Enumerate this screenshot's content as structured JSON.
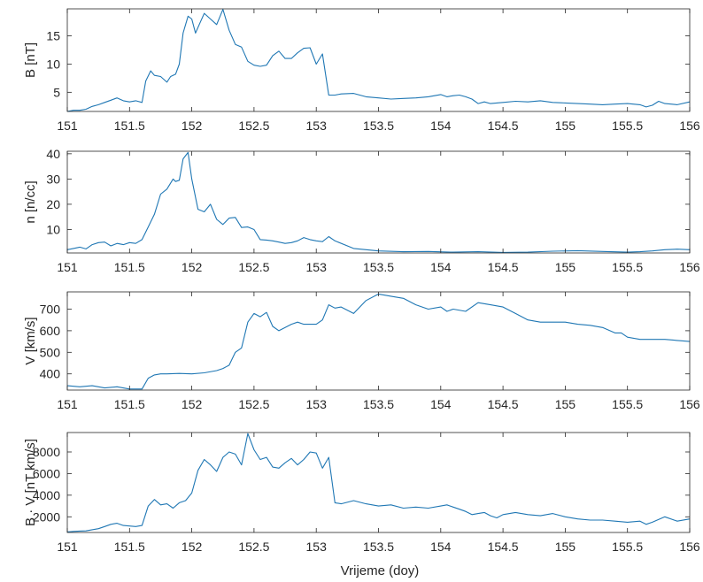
{
  "xlabel": "Vrijeme (doy)",
  "line_color": "#1f77b4",
  "chart_data": [
    {
      "type": "line",
      "ylabel": "B [nT]",
      "xlim": [
        151,
        156
      ],
      "ylim": [
        1.6,
        19.8
      ],
      "xticks": [
        "151",
        "151.5",
        "152",
        "152.5",
        "153",
        "153.5",
        "154",
        "154.5",
        "155",
        "155.5",
        "156"
      ],
      "yticks": [
        "5",
        "10",
        "15"
      ],
      "x": [
        151.0,
        151.05,
        151.1,
        151.15,
        151.2,
        151.25,
        151.3,
        151.35,
        151.4,
        151.45,
        151.5,
        151.55,
        151.6,
        151.63,
        151.67,
        151.7,
        151.75,
        151.8,
        151.83,
        151.87,
        151.9,
        151.93,
        151.97,
        152.0,
        152.03,
        152.07,
        152.1,
        152.15,
        152.2,
        152.25,
        152.3,
        152.35,
        152.4,
        152.45,
        152.5,
        152.55,
        152.6,
        152.65,
        152.7,
        152.75,
        152.8,
        152.85,
        152.9,
        152.95,
        153.0,
        153.05,
        153.1,
        153.15,
        153.2,
        153.3,
        153.4,
        153.5,
        153.6,
        153.7,
        153.8,
        153.9,
        154.0,
        154.05,
        154.1,
        154.15,
        154.2,
        154.25,
        154.3,
        154.35,
        154.4,
        154.5,
        154.6,
        154.7,
        154.8,
        154.9,
        155.0,
        155.1,
        155.2,
        155.3,
        155.4,
        155.5,
        155.6,
        155.65,
        155.7,
        155.75,
        155.8,
        155.85,
        155.9,
        156.0
      ],
      "y": [
        1.6,
        1.8,
        1.8,
        2.0,
        2.5,
        2.8,
        3.2,
        3.6,
        4.0,
        3.5,
        3.3,
        3.5,
        3.2,
        7.0,
        8.8,
        8.0,
        7.8,
        6.8,
        7.8,
        8.2,
        10.0,
        15.5,
        18.5,
        18.0,
        15.5,
        17.5,
        19.0,
        18.0,
        17.0,
        19.7,
        16.0,
        13.5,
        13.0,
        10.5,
        9.8,
        9.6,
        9.8,
        11.5,
        12.3,
        11.0,
        11.0,
        12.0,
        12.8,
        12.9,
        10.0,
        11.8,
        4.5,
        4.5,
        4.7,
        4.8,
        4.2,
        4.0,
        3.8,
        3.9,
        4.0,
        4.2,
        4.6,
        4.2,
        4.4,
        4.5,
        4.2,
        3.8,
        3.0,
        3.3,
        3.0,
        3.2,
        3.4,
        3.3,
        3.5,
        3.2,
        3.1,
        3.0,
        2.9,
        2.8,
        2.9,
        3.0,
        2.8,
        2.4,
        2.7,
        3.4,
        3.0,
        2.9,
        2.8,
        3.3
      ]
    },
    {
      "type": "line",
      "ylabel": "n [n/cc]",
      "xlim": [
        151,
        156
      ],
      "ylim": [
        0.7,
        41
      ],
      "xticks": [
        "151",
        "151.5",
        "152",
        "152.5",
        "153",
        "153.5",
        "154",
        "154.5",
        "155",
        "155.5",
        "156"
      ],
      "yticks": [
        "10",
        "20",
        "30",
        "40"
      ],
      "x": [
        151.0,
        151.05,
        151.1,
        151.15,
        151.2,
        151.25,
        151.3,
        151.35,
        151.4,
        151.45,
        151.5,
        151.55,
        151.6,
        151.65,
        151.7,
        151.75,
        151.8,
        151.85,
        151.87,
        151.9,
        151.93,
        151.97,
        152.0,
        152.05,
        152.1,
        152.15,
        152.2,
        152.25,
        152.3,
        152.35,
        152.4,
        152.45,
        152.5,
        152.55,
        152.6,
        152.65,
        152.7,
        152.75,
        152.8,
        152.85,
        152.9,
        152.95,
        153.0,
        153.05,
        153.1,
        153.15,
        153.3,
        153.5,
        153.7,
        153.9,
        154.1,
        154.3,
        154.5,
        154.7,
        154.9,
        155.1,
        155.3,
        155.5,
        155.6,
        155.7,
        155.8,
        155.9,
        156.0
      ],
      "y": [
        2.0,
        2.5,
        3.0,
        2.3,
        4.0,
        4.8,
        5.0,
        3.5,
        4.5,
        4.0,
        4.8,
        4.5,
        6.0,
        11.0,
        16.0,
        24.0,
        26.0,
        30.0,
        29.0,
        29.5,
        38.0,
        40.5,
        30.0,
        18.0,
        17.0,
        20.0,
        14.0,
        12.0,
        14.5,
        14.8,
        10.8,
        11.0,
        10.0,
        6.0,
        5.8,
        5.5,
        5.0,
        4.5,
        4.8,
        5.5,
        6.8,
        6.0,
        5.5,
        5.2,
        7.2,
        5.5,
        2.5,
        1.5,
        1.2,
        1.3,
        1.0,
        1.2,
        0.9,
        1.0,
        1.4,
        1.6,
        1.3,
        1.0,
        1.2,
        1.5,
        2.0,
        2.2,
        2.0
      ]
    },
    {
      "type": "line",
      "ylabel": "V [km/s]",
      "xlim": [
        151,
        156
      ],
      "ylim": [
        325,
        780
      ],
      "xticks": [
        "151",
        "151.5",
        "152",
        "152.5",
        "153",
        "153.5",
        "154",
        "154.5",
        "155",
        "155.5",
        "156"
      ],
      "yticks": [
        "400",
        "500",
        "600",
        "700"
      ],
      "x": [
        151.0,
        151.1,
        151.2,
        151.3,
        151.4,
        151.5,
        151.6,
        151.65,
        151.7,
        151.75,
        151.8,
        151.9,
        152.0,
        152.1,
        152.2,
        152.25,
        152.3,
        152.35,
        152.4,
        152.45,
        152.5,
        152.55,
        152.6,
        152.65,
        152.7,
        152.8,
        152.85,
        152.9,
        153.0,
        153.05,
        153.1,
        153.15,
        153.2,
        153.3,
        153.4,
        153.5,
        153.6,
        153.7,
        153.8,
        153.9,
        154.0,
        154.05,
        154.1,
        154.2,
        154.3,
        154.4,
        154.5,
        154.6,
        154.7,
        154.8,
        154.9,
        155.0,
        155.1,
        155.2,
        155.3,
        155.4,
        155.45,
        155.5,
        155.6,
        155.7,
        155.8,
        155.9,
        156.0
      ],
      "y": [
        345,
        340,
        345,
        335,
        340,
        330,
        330,
        380,
        395,
        400,
        400,
        402,
        400,
        405,
        415,
        425,
        440,
        500,
        520,
        640,
        680,
        665,
        685,
        620,
        600,
        630,
        640,
        630,
        630,
        650,
        720,
        705,
        710,
        680,
        740,
        770,
        760,
        750,
        720,
        700,
        710,
        690,
        700,
        690,
        730,
        720,
        710,
        680,
        650,
        640,
        640,
        640,
        630,
        625,
        615,
        590,
        590,
        570,
        560,
        560,
        560,
        555,
        550
      ]
    },
    {
      "type": "line",
      "ylabel": "B · V [nT km/s]",
      "xlim": [
        151,
        156
      ],
      "ylim": [
        550,
        9800
      ],
      "xticks": [
        "151",
        "151.5",
        "152",
        "152.5",
        "153",
        "153.5",
        "154",
        "154.5",
        "155",
        "155.5",
        "156"
      ],
      "yticks": [
        "2000",
        "4000",
        "6000",
        "8000"
      ],
      "x": [
        151.0,
        151.05,
        151.1,
        151.15,
        151.2,
        151.25,
        151.3,
        151.35,
        151.4,
        151.45,
        151.5,
        151.55,
        151.6,
        151.65,
        151.7,
        151.75,
        151.8,
        151.85,
        151.9,
        151.95,
        152.0,
        152.05,
        152.1,
        152.15,
        152.2,
        152.25,
        152.3,
        152.35,
        152.4,
        152.45,
        152.5,
        152.55,
        152.6,
        152.65,
        152.7,
        152.75,
        152.8,
        152.85,
        152.9,
        152.95,
        153.0,
        153.05,
        153.1,
        153.15,
        153.2,
        153.3,
        153.4,
        153.5,
        153.6,
        153.7,
        153.8,
        153.9,
        154.0,
        154.05,
        154.1,
        154.15,
        154.2,
        154.25,
        154.3,
        154.35,
        154.4,
        154.45,
        154.5,
        154.6,
        154.7,
        154.8,
        154.9,
        155.0,
        155.1,
        155.2,
        155.3,
        155.4,
        155.5,
        155.6,
        155.65,
        155.7,
        155.8,
        155.9,
        156.0
      ],
      "y": [
        600,
        650,
        680,
        700,
        800,
        900,
        1100,
        1300,
        1400,
        1200,
        1150,
        1100,
        1200,
        3000,
        3600,
        3100,
        3200,
        2800,
        3300,
        3500,
        4200,
        6300,
        7300,
        6800,
        6200,
        7500,
        8000,
        7800,
        6800,
        9700,
        8200,
        7300,
        7500,
        6600,
        6500,
        7000,
        7400,
        6800,
        7300,
        8000,
        7900,
        6500,
        7500,
        3300,
        3200,
        3500,
        3200,
        3000,
        3100,
        2800,
        2900,
        2800,
        3000,
        3100,
        2900,
        2700,
        2500,
        2200,
        2300,
        2400,
        2100,
        1900,
        2200,
        2400,
        2200,
        2100,
        2300,
        2000,
        1800,
        1700,
        1700,
        1600,
        1500,
        1600,
        1300,
        1500,
        2000,
        1600,
        1800
      ]
    }
  ]
}
